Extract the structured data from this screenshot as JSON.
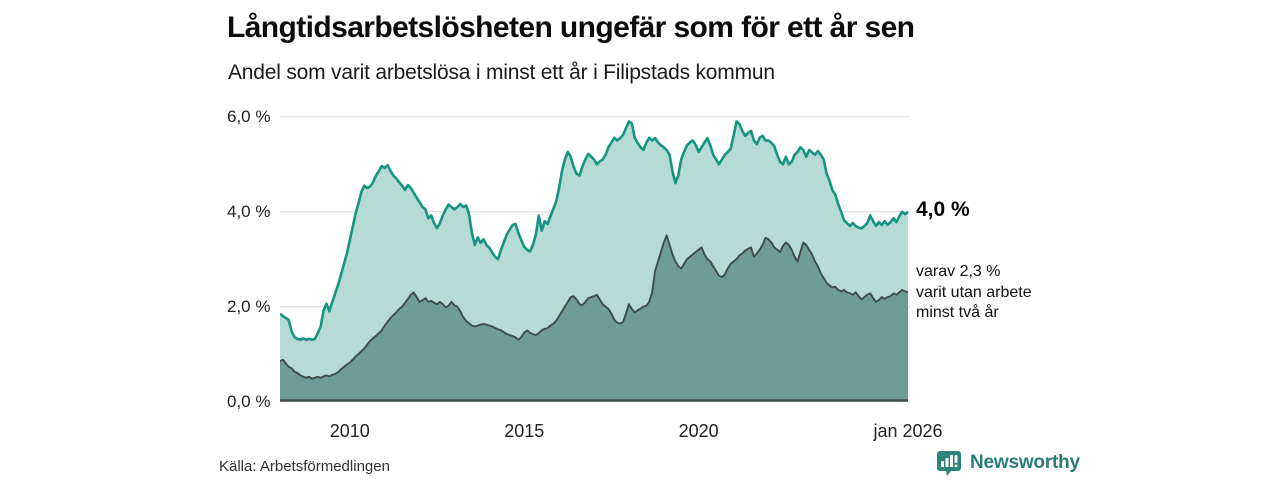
{
  "header": {
    "title": "Långtidsarbetslösheten ungefär som för ett år sen",
    "subtitle": "Andel som varit arbetslösa i minst ett år i Filipstads kommun"
  },
  "chart_data": {
    "type": "area",
    "title": "Långtidsarbetslösheten ungefär som för ett år sen",
    "subtitle": "Andel som varit arbetslösa i minst ett år i Filipstads kommun",
    "x_start_year": 2008.0,
    "x_end_year": 2026.0,
    "points_per_year": 12,
    "ylim": [
      0,
      6.2
    ],
    "grid": true,
    "colors": {
      "series1_line": "#169482",
      "series1_fill": "#b6dbd4",
      "series2_line": "#3d4c4a",
      "series2_fill": "#6f9c96",
      "gridline": "#dcdcdc",
      "baseline": "#3d4c4a"
    },
    "y_ticks": [
      {
        "label": "0,0 %",
        "value": 0
      },
      {
        "label": "2,0 %",
        "value": 2
      },
      {
        "label": "4,0 %",
        "value": 4
      },
      {
        "label": "6,0 %",
        "value": 6
      }
    ],
    "x_ticks": [
      {
        "label": "2010",
        "year": 2010
      },
      {
        "label": "2015",
        "year": 2015
      },
      {
        "label": "2020",
        "year": 2020
      },
      {
        "label": "jan 2026",
        "year": 2026
      }
    ],
    "series": [
      {
        "name": "Andel arbetslösa minst ett år",
        "end_value_label": "4,0 %",
        "values": [
          1.85,
          1.8,
          1.76,
          1.72,
          1.48,
          1.36,
          1.32,
          1.3,
          1.33,
          1.3,
          1.32,
          1.3,
          1.32,
          1.44,
          1.58,
          1.92,
          2.06,
          1.9,
          2.1,
          2.28,
          2.46,
          2.68,
          2.9,
          3.12,
          3.4,
          3.68,
          3.96,
          4.18,
          4.42,
          4.55,
          4.5,
          4.53,
          4.62,
          4.76,
          4.86,
          4.96,
          4.92,
          4.98,
          4.86,
          4.76,
          4.7,
          4.62,
          4.55,
          4.46,
          4.56,
          4.5,
          4.4,
          4.3,
          4.2,
          4.1,
          4.05,
          3.86,
          3.92,
          3.76,
          3.65,
          3.76,
          3.92,
          4.05,
          4.15,
          4.1,
          4.05,
          4.1,
          4.16,
          4.1,
          4.13,
          3.95,
          3.55,
          3.3,
          3.46,
          3.34,
          3.42,
          3.3,
          3.24,
          3.14,
          3.05,
          3.0,
          3.2,
          3.36,
          3.52,
          3.62,
          3.72,
          3.74,
          3.55,
          3.4,
          3.26,
          3.2,
          3.16,
          3.3,
          3.52,
          3.92,
          3.6,
          3.8,
          3.74,
          3.9,
          4.06,
          4.22,
          4.5,
          4.86,
          5.1,
          5.26,
          5.16,
          4.95,
          4.8,
          4.76,
          4.95,
          5.1,
          5.22,
          5.16,
          5.1,
          5.0,
          5.06,
          5.1,
          5.2,
          5.36,
          5.46,
          5.56,
          5.5,
          5.55,
          5.62,
          5.76,
          5.9,
          5.86,
          5.56,
          5.45,
          5.36,
          5.3,
          5.45,
          5.56,
          5.5,
          5.55,
          5.46,
          5.4,
          5.36,
          5.3,
          5.2,
          4.85,
          4.6,
          4.76,
          5.1,
          5.26,
          5.4,
          5.46,
          5.5,
          5.4,
          5.26,
          5.36,
          5.46,
          5.55,
          5.4,
          5.2,
          5.1,
          5.0,
          5.1,
          5.2,
          5.26,
          5.32,
          5.6,
          5.9,
          5.85,
          5.7,
          5.6,
          5.66,
          5.7,
          5.5,
          5.42,
          5.56,
          5.6,
          5.5,
          5.5,
          5.45,
          5.38,
          5.2,
          5.05,
          5.0,
          5.16,
          5.0,
          5.05,
          5.2,
          5.26,
          5.36,
          5.3,
          5.16,
          5.3,
          5.25,
          5.2,
          5.28,
          5.2,
          5.1,
          4.8,
          4.65,
          4.45,
          4.36,
          4.16,
          4.0,
          3.82,
          3.76,
          3.7,
          3.76,
          3.7,
          3.66,
          3.65,
          3.7,
          3.76,
          3.92,
          3.8,
          3.7,
          3.78,
          3.72,
          3.8,
          3.72,
          3.78,
          3.86,
          3.78,
          3.9,
          4.0,
          3.95,
          4.0
        ]
      },
      {
        "name": "Andel utan arbete minst två år",
        "end_value_label": "2,3 %",
        "values": [
          0.85,
          0.88,
          0.8,
          0.73,
          0.7,
          0.63,
          0.6,
          0.55,
          0.52,
          0.5,
          0.52,
          0.48,
          0.5,
          0.52,
          0.5,
          0.53,
          0.55,
          0.53,
          0.56,
          0.58,
          0.62,
          0.68,
          0.73,
          0.78,
          0.82,
          0.88,
          0.95,
          1.0,
          1.06,
          1.12,
          1.2,
          1.28,
          1.33,
          1.38,
          1.44,
          1.5,
          1.6,
          1.68,
          1.76,
          1.82,
          1.88,
          1.95,
          2.0,
          2.08,
          2.16,
          2.25,
          2.3,
          2.2,
          2.1,
          2.13,
          2.18,
          2.1,
          2.12,
          2.08,
          2.05,
          2.1,
          2.05,
          1.98,
          2.02,
          2.1,
          2.03,
          2.0,
          1.9,
          1.78,
          1.7,
          1.65,
          1.6,
          1.58,
          1.6,
          1.62,
          1.63,
          1.62,
          1.6,
          1.58,
          1.55,
          1.52,
          1.5,
          1.46,
          1.42,
          1.4,
          1.38,
          1.35,
          1.3,
          1.36,
          1.45,
          1.5,
          1.45,
          1.42,
          1.4,
          1.44,
          1.5,
          1.53,
          1.55,
          1.6,
          1.64,
          1.7,
          1.8,
          1.9,
          2.0,
          2.1,
          2.2,
          2.22,
          2.15,
          2.05,
          2.03,
          2.1,
          2.18,
          2.2,
          2.22,
          2.25,
          2.15,
          2.05,
          2.0,
          1.95,
          1.85,
          1.72,
          1.66,
          1.64,
          1.68,
          1.85,
          2.05,
          1.95,
          1.88,
          1.92,
          1.96,
          2.0,
          2.02,
          2.1,
          2.3,
          2.75,
          2.95,
          3.15,
          3.35,
          3.5,
          3.3,
          3.1,
          2.95,
          2.85,
          2.8,
          2.9,
          3.0,
          3.05,
          3.1,
          3.15,
          3.2,
          3.25,
          3.1,
          3.0,
          2.95,
          2.85,
          2.75,
          2.65,
          2.62,
          2.68,
          2.8,
          2.9,
          2.95,
          3.0,
          3.08,
          3.12,
          3.18,
          3.22,
          3.25,
          3.05,
          3.12,
          3.2,
          3.3,
          3.45,
          3.42,
          3.35,
          3.25,
          3.2,
          3.15,
          3.28,
          3.35,
          3.3,
          3.2,
          3.05,
          2.95,
          3.15,
          3.35,
          3.3,
          3.2,
          3.1,
          2.95,
          2.85,
          2.7,
          2.6,
          2.5,
          2.45,
          2.4,
          2.42,
          2.35,
          2.32,
          2.35,
          2.3,
          2.28,
          2.25,
          2.3,
          2.22,
          2.15,
          2.2,
          2.25,
          2.28,
          2.18,
          2.1,
          2.14,
          2.2,
          2.16,
          2.2,
          2.22,
          2.28,
          2.25,
          2.3,
          2.35,
          2.32,
          2.3
        ]
      }
    ],
    "annotations": {
      "primary": "4,0 %",
      "secondary_line1": "varav 2,3 %",
      "secondary_line2": "varit utan arbete",
      "secondary_line3": "minst två år"
    }
  },
  "footer": {
    "source": "Källa: Arbetsförmedlingen",
    "brand": "Newsworthy"
  }
}
